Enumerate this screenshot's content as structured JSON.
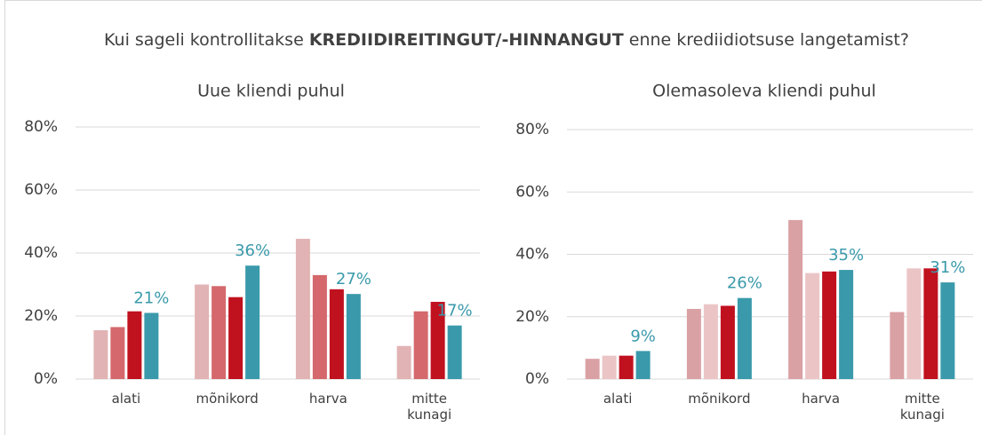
{
  "title": [
    "Kui sageli kontrollitakse",
    "KREDIIDIREITINGUT/-HINNANGUT",
    "enne krediidiotsuse langetamist?"
  ],
  "chart_data": [
    {
      "type": "bar",
      "subtitle": "Uue kliendi puhul",
      "categories": [
        "alati",
        "mõnikord",
        "harva",
        "mitte kunagi"
      ],
      "series": [
        {
          "color": "#e2b3b4",
          "values": [
            15.5,
            30,
            44.5,
            10.5
          ]
        },
        {
          "color": "#d4686c",
          "values": [
            16.5,
            29.5,
            33,
            21.5
          ]
        },
        {
          "color": "#c0111f",
          "values": [
            21.5,
            26,
            28.5,
            24.5
          ]
        },
        {
          "color": "#3a9aab",
          "values": [
            21,
            36,
            27,
            17
          ],
          "value_labels": [
            "21%",
            "36%",
            "27%",
            "17%"
          ]
        }
      ],
      "ylim": [
        0,
        80
      ],
      "yticks": [
        {
          "value": 0,
          "label": "0%"
        },
        {
          "value": 20,
          "label": "20%"
        },
        {
          "value": 40,
          "label": "40%"
        },
        {
          "value": 60,
          "label": "60%"
        },
        {
          "value": 80,
          "label": "80%"
        }
      ],
      "grid": true
    },
    {
      "type": "bar",
      "subtitle": "Olemasoleva kliendi puhul",
      "categories": [
        "alati",
        "mõnikord",
        "harva",
        "mitte kunagi"
      ],
      "series": [
        {
          "color": "#daa1a5",
          "values": [
            6.5,
            22.5,
            51,
            21.5
          ]
        },
        {
          "color": "#ebc5c6",
          "values": [
            7.5,
            24,
            34,
            35.5
          ]
        },
        {
          "color": "#c0111f",
          "values": [
            7.5,
            23.5,
            34.5,
            35.5
          ]
        },
        {
          "color": "#3a9aab",
          "values": [
            9,
            26,
            35,
            31
          ],
          "value_labels": [
            "9%",
            "26%",
            "35%",
            "31%"
          ]
        }
      ],
      "ylim": [
        0,
        80
      ],
      "yticks": [
        {
          "value": 0,
          "label": "0%"
        },
        {
          "value": 20,
          "label": "20%"
        },
        {
          "value": 40,
          "label": "40%"
        },
        {
          "value": 60,
          "label": "60%"
        },
        {
          "value": 80,
          "label": "80%"
        }
      ],
      "grid": true
    }
  ]
}
